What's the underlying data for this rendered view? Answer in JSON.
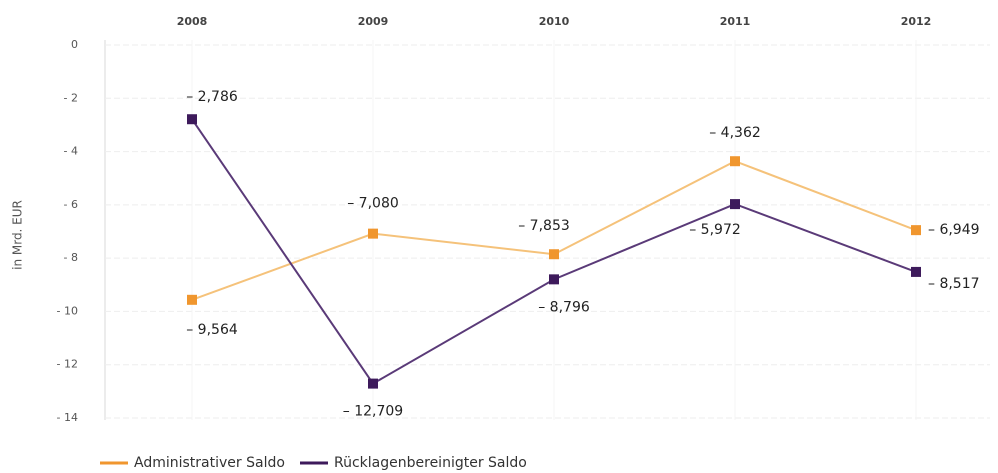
{
  "chart_data": {
    "type": "line",
    "y_label": "in Mrd. EUR",
    "categories": [
      "2008",
      "2009",
      "2010",
      "2011",
      "2012"
    ],
    "series": [
      {
        "name": "Administrativer Saldo",
        "color": "#f0962e",
        "line_color": "#f5c27a",
        "values": [
          -9.564,
          -7.08,
          -7.853,
          -4.362,
          -6.949
        ],
        "value_labels": [
          "– 9,564",
          "– 7,080",
          "– 7,853",
          "– 4,362",
          "– 6,949"
        ]
      },
      {
        "name": "Rücklagenbereinigter Saldo",
        "color": "#3d1a5b",
        "line_color": "#5a3a78",
        "values": [
          -2.786,
          -12.709,
          -8.796,
          -5.972,
          -8.517
        ],
        "value_labels": [
          "– 2,786",
          "– 12,709",
          "– 8,796",
          "– 5,972",
          "– 8,517"
        ]
      }
    ],
    "ylim": [
      0,
      -14
    ],
    "yticks": [
      0,
      {
        "value": -2,
        "label": "- 2"
      },
      {
        "value": -4,
        "label": "- 4"
      },
      {
        "value": -6,
        "label": "- 6"
      },
      {
        "value": -8,
        "label": "- 8"
      },
      {
        "value": -10,
        "label": "- 10"
      },
      {
        "value": -12,
        "label": "- 12"
      },
      {
        "value": -14,
        "label": "- 14"
      }
    ],
    "grid": true
  }
}
